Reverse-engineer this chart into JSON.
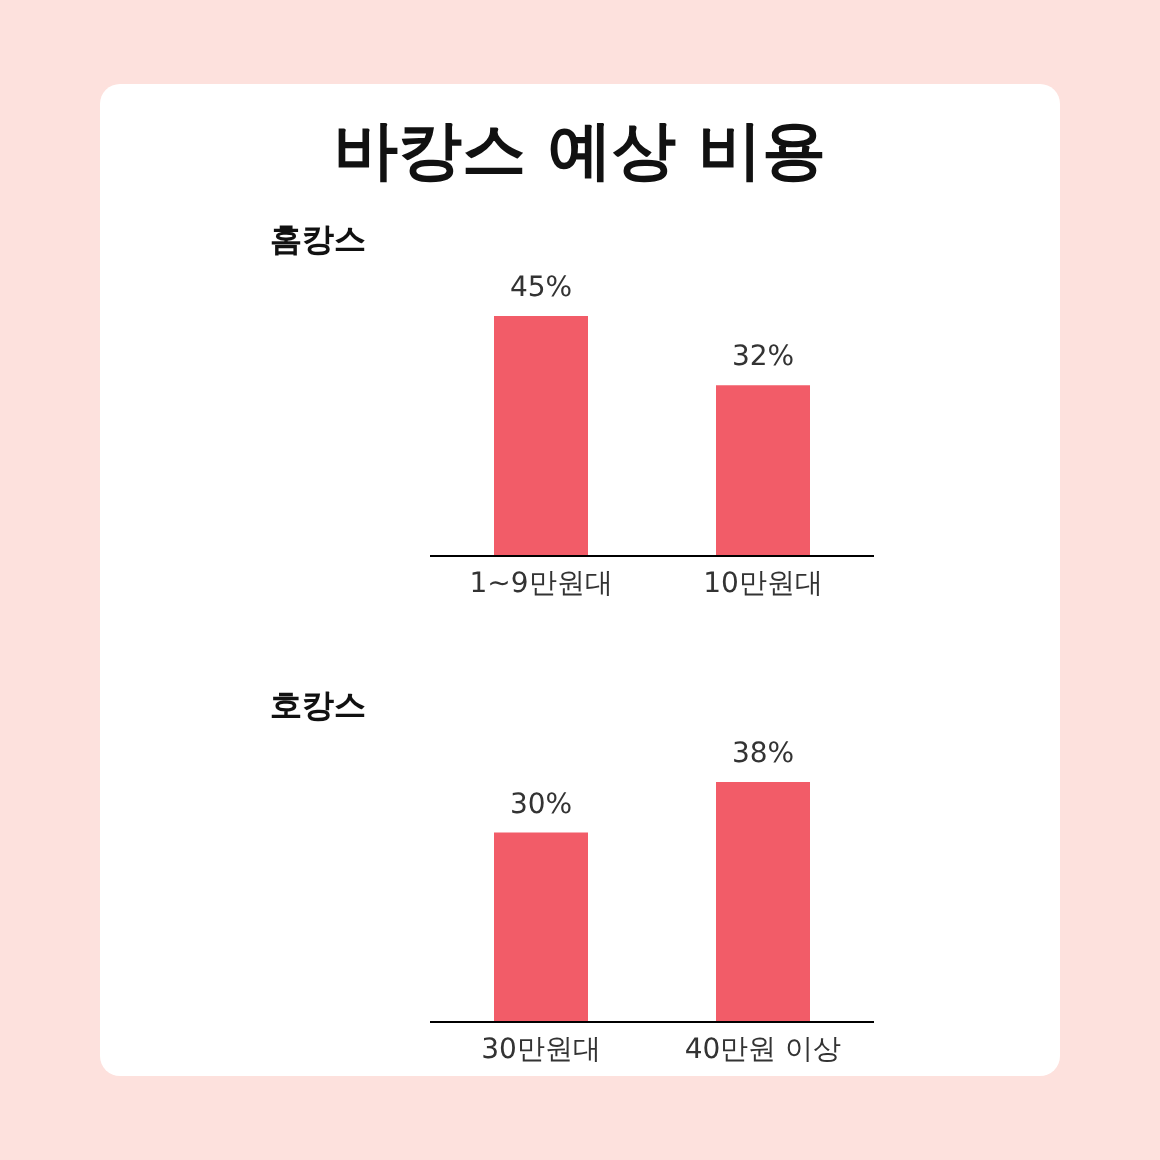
{
  "chart_data": [
    {
      "type": "bar",
      "title": "바캉스 예상 비용",
      "subtitle": "홈캉스",
      "categories": [
        "1~9만원대",
        "10만원대"
      ],
      "values": [
        45,
        32
      ],
      "value_labels": [
        "45%",
        "32%"
      ],
      "color": "#f25c68"
    },
    {
      "type": "bar",
      "title": "호캉스",
      "categories": [
        "30만원대",
        "40만원 이상"
      ],
      "values": [
        30,
        38
      ],
      "value_labels": [
        "30%",
        "38%"
      ],
      "color": "#f25c68"
    }
  ]
}
